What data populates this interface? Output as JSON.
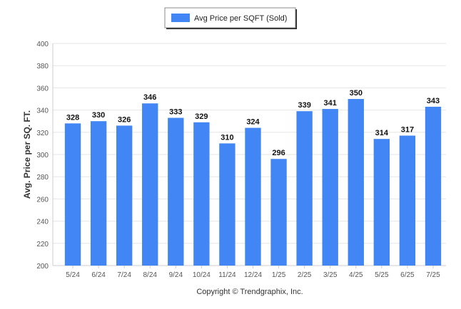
{
  "chart_data": {
    "type": "bar",
    "categories": [
      "5/24",
      "6/24",
      "7/24",
      "8/24",
      "9/24",
      "10/24",
      "11/24",
      "12/24",
      "1/25",
      "2/25",
      "3/25",
      "4/25",
      "5/25",
      "6/25",
      "7/25"
    ],
    "series": [
      {
        "name": "Avg Price per SQFT (Sold)",
        "values": [
          328,
          330,
          326,
          346,
          333,
          329,
          310,
          324,
          296,
          339,
          341,
          350,
          314,
          317,
          343
        ],
        "color": "#4285f4"
      }
    ],
    "ylabel": "Avg. Price per SQ. FT.",
    "ylim": [
      200,
      400
    ],
    "yticks": [
      200,
      220,
      240,
      260,
      280,
      300,
      320,
      340,
      360,
      380,
      400
    ],
    "grid": true,
    "legend_position": "top-center"
  },
  "footer": {
    "copyright": "Copyright © Trendgraphix, Inc."
  },
  "colors": {
    "bar": "#4285f4",
    "grid": "#e6e6e6",
    "axis": "#cccccc"
  }
}
